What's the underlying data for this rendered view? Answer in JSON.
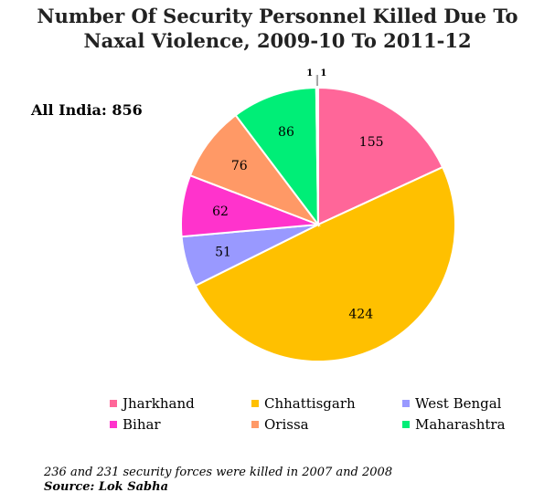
{
  "title_line1": "Number Of Security Personnel Killed Due To",
  "title_line2": "Naxal Violence, 2009-10 To 2011-12",
  "total_label": "All India: 856",
  "chart_data": {
    "type": "pie",
    "title": "Number Of Security Personnel Killed Due To Naxal Violence, 2009-10 To 2011-12",
    "total": 856,
    "legend_position": "bottom",
    "slices": [
      {
        "label": "Jharkhand",
        "value": 155,
        "color": "#ff6699",
        "in_legend": true
      },
      {
        "label": "Chhattisgarh",
        "value": 424,
        "color": "#ffc000",
        "in_legend": true
      },
      {
        "label": "West Bengal",
        "value": 51,
        "color": "#9999ff",
        "in_legend": true
      },
      {
        "label": "Bihar",
        "value": 62,
        "color": "#ff33cc",
        "in_legend": true
      },
      {
        "label": "Orissa",
        "value": 76,
        "color": "#ff9966",
        "in_legend": true
      },
      {
        "label": "Maharashtra",
        "value": 86,
        "color": "#00ee77",
        "in_legend": true
      },
      {
        "label": "",
        "value": 1,
        "color": "#ff0000",
        "in_legend": false
      },
      {
        "label": "",
        "value": 1,
        "color": "#111111",
        "in_legend": false
      }
    ]
  },
  "footnote": "236 and 231 security forces were killed in 2007 and 2008",
  "source": "Source: Lok Sabha"
}
